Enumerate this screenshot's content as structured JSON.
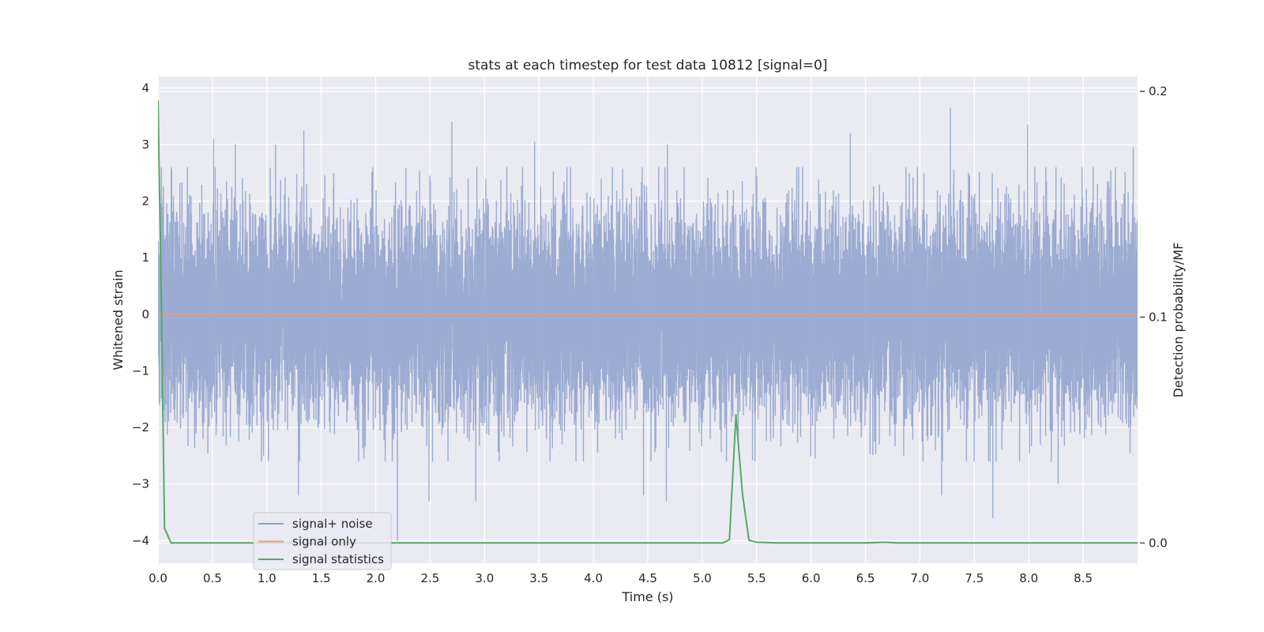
{
  "chart_data": {
    "type": "line",
    "title": "stats at each timestep for test data 10812 [signal=0]",
    "xlabel": "Time (s)",
    "ylabel": "Whitened strain",
    "y2label": "Detection probability/MF",
    "xlim": [
      0,
      9.0
    ],
    "ylim": [
      -4.4,
      4.2
    ],
    "y2lim": [
      -0.009,
      0.2065
    ],
    "xticks": [
      0.0,
      0.5,
      1.0,
      1.5,
      2.0,
      2.5,
      3.0,
      3.5,
      4.0,
      4.5,
      5.0,
      5.5,
      6.0,
      6.5,
      7.0,
      7.5,
      8.0,
      8.5
    ],
    "xtick_labels": [
      "0.0",
      "0.5",
      "1.0",
      "1.5",
      "2.0",
      "2.5",
      "3.0",
      "3.5",
      "4.0",
      "4.5",
      "5.0",
      "5.5",
      "6.0",
      "6.5",
      "7.0",
      "7.5",
      "8.0",
      "8.5"
    ],
    "yticks": [
      -4,
      -3,
      -2,
      -1,
      0,
      1,
      2,
      3,
      4
    ],
    "ytick_labels": [
      "−4",
      "−3",
      "−2",
      "−1",
      "0",
      "1",
      "2",
      "3",
      "4"
    ],
    "y2ticks": [
      0.0,
      0.1,
      0.2
    ],
    "y2tick_labels": [
      "0.0",
      "0.1",
      "0.2"
    ],
    "grid": true,
    "legend_position": "lower-left",
    "series": [
      {
        "name": "signal+ noise",
        "axis": "left",
        "color": "#8da0cb",
        "noise_sample_rate_hz": 2048,
        "noise_sigma": 1.0,
        "peaks": [
          {
            "x": 0.51,
            "y": 3.1
          },
          {
            "x": 0.71,
            "y": 3.0
          },
          {
            "x": 1.08,
            "y": 3.0
          },
          {
            "x": 1.34,
            "y": 3.25
          },
          {
            "x": 2.7,
            "y": 3.4
          },
          {
            "x": 3.46,
            "y": 3.05
          },
          {
            "x": 4.68,
            "y": 3.0
          },
          {
            "x": 6.36,
            "y": 3.2
          },
          {
            "x": 7.28,
            "y": 3.65
          },
          {
            "x": 7.99,
            "y": 3.35
          },
          {
            "x": 8.96,
            "y": 2.95
          },
          {
            "x": 1.29,
            "y": -3.2
          },
          {
            "x": 2.2,
            "y": -4.0
          },
          {
            "x": 2.49,
            "y": -3.3
          },
          {
            "x": 2.92,
            "y": -3.3
          },
          {
            "x": 4.46,
            "y": -3.2
          },
          {
            "x": 4.67,
            "y": -3.3
          },
          {
            "x": 7.67,
            "y": -3.6
          },
          {
            "x": 7.2,
            "y": -3.2
          },
          {
            "x": 8.27,
            "y": -3.0
          }
        ]
      },
      {
        "name": "signal only",
        "axis": "left",
        "color": "#e5a07d",
        "x": [
          0,
          9.0
        ],
        "y": [
          0,
          0
        ]
      },
      {
        "name": "signal statistics",
        "axis": "right",
        "color": "#55a868",
        "x": [
          0.0,
          0.03,
          0.06,
          0.12,
          0.2,
          0.5,
          1.0,
          2.0,
          3.0,
          4.0,
          5.0,
          5.19,
          5.25,
          5.31,
          5.37,
          5.43,
          5.5,
          5.7,
          6.0,
          6.5,
          6.68,
          6.8,
          7.0,
          8.0,
          9.0
        ],
        "y": [
          0.196,
          0.11,
          0.0065,
          0.0,
          0.0,
          0.0,
          0.0,
          0.0,
          0.0,
          0.0,
          0.0,
          0.0,
          0.0015,
          0.057,
          0.0215,
          0.0012,
          0.0003,
          0.0,
          0.0,
          0.0,
          0.0003,
          0.0,
          0.0,
          0.0,
          0.0
        ]
      }
    ]
  }
}
